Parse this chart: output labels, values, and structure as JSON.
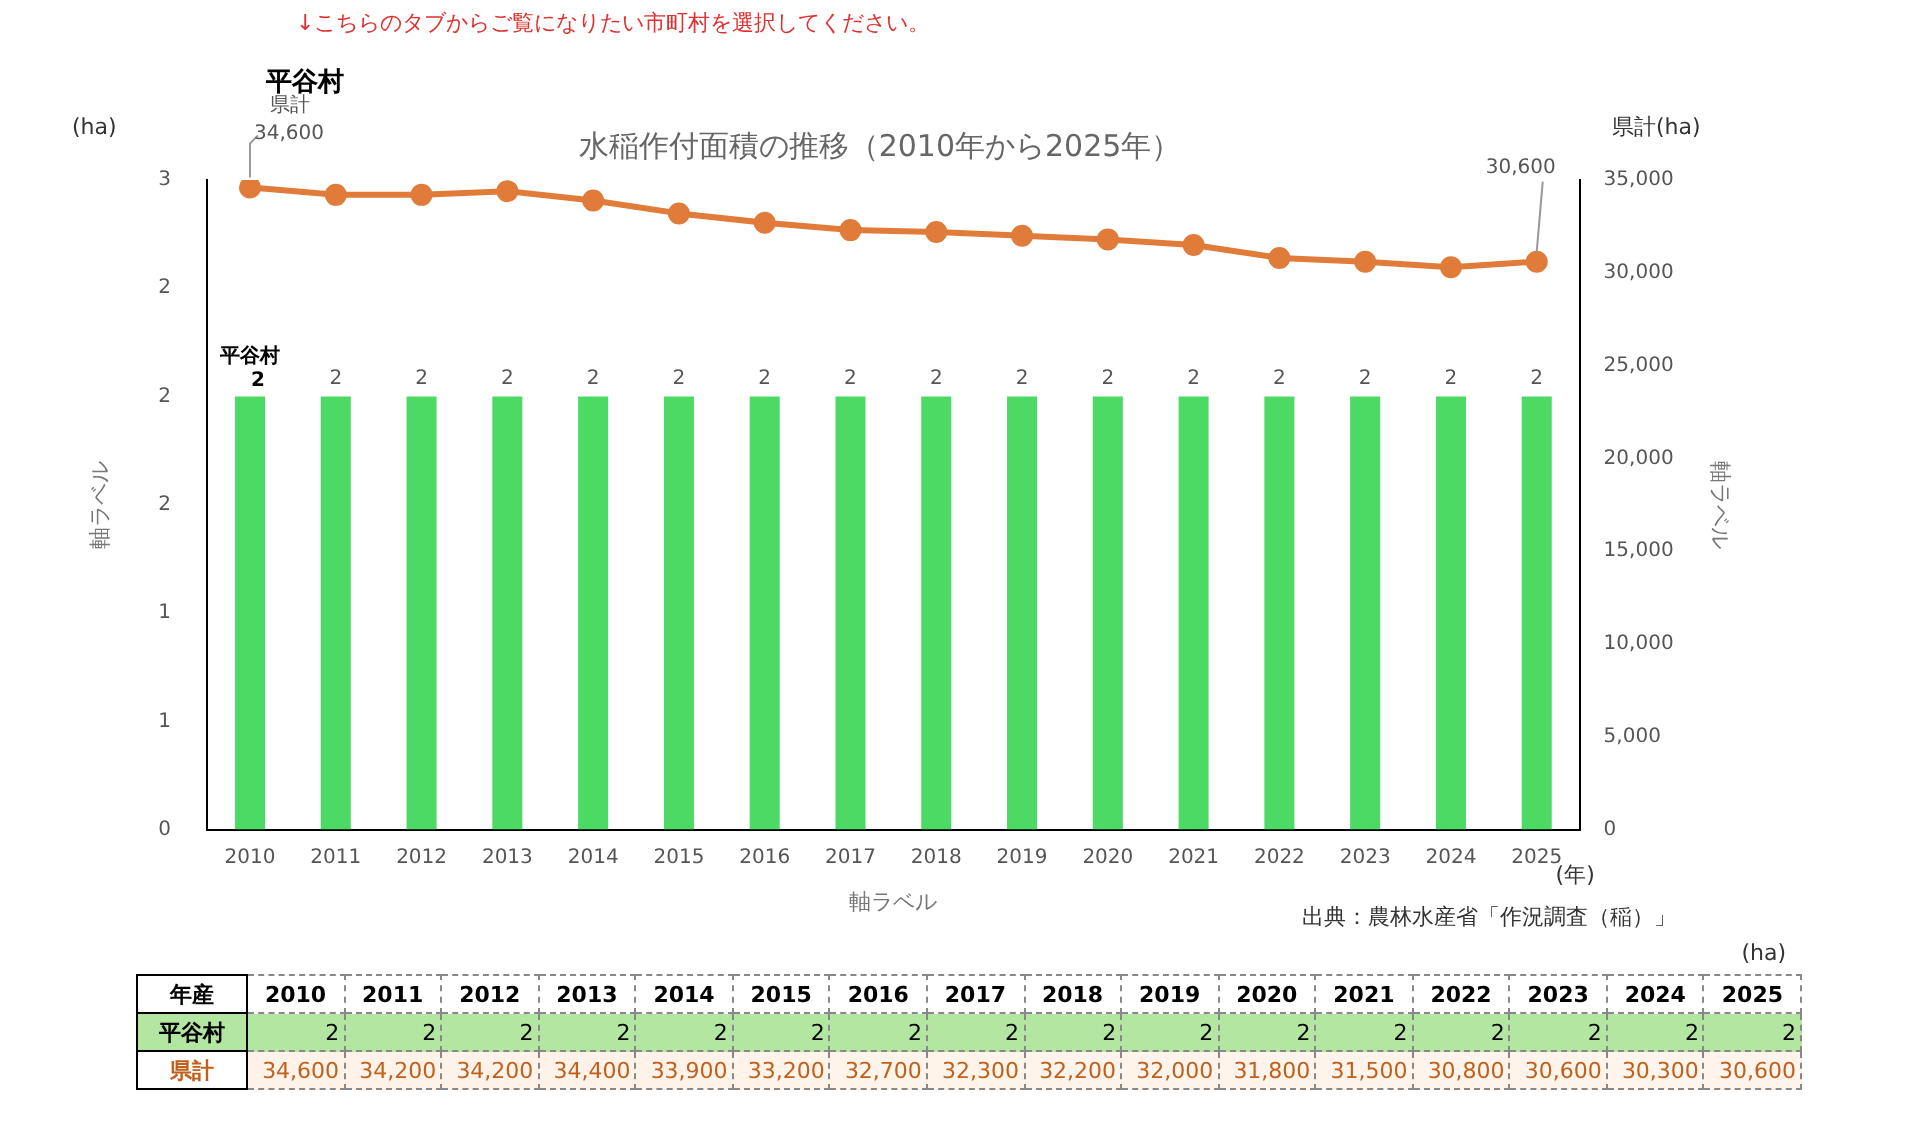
{
  "chart_data": [
    {
      "type": "bar",
      "title": "水稲作付面積の推移（2010年から2025年）",
      "subtitle": "平谷村",
      "xlabel": "軸ラベル",
      "ylabel": "軸ラベル",
      "y2label": "軸ラベル",
      "annotations": [
        "↓こちらのタブからご覧になりたい市町村を選択してください。",
        "(ha)",
        "県計(ha)",
        "(年)",
        "出典：農林水産省「作況調査（稲）」"
      ],
      "categories": [
        "2010",
        "2011",
        "2012",
        "2013",
        "2014",
        "2015",
        "2016",
        "2017",
        "2018",
        "2019",
        "2020",
        "2021",
        "2022",
        "2023",
        "2024",
        "2025"
      ],
      "series": [
        {
          "name": "平谷村",
          "color": "#4cd964",
          "values": [
            2,
            2,
            2,
            2,
            2,
            2,
            2,
            2,
            2,
            2,
            2,
            2,
            2,
            2,
            2,
            2
          ],
          "value_labels": [
            "2",
            "2",
            "2",
            "2",
            "2",
            "2",
            "2",
            "2",
            "2",
            "2",
            "2",
            "2",
            "2",
            "2",
            "2",
            "2"
          ]
        },
        {
          "name": "県計",
          "type": "line",
          "axis": "y2",
          "color": "#e07b39",
          "marker": "circle",
          "values": [
            34600,
            34200,
            34200,
            34400,
            33900,
            33200,
            32700,
            32300,
            32200,
            32000,
            31800,
            31500,
            30800,
            30600,
            30300,
            30600
          ],
          "value_labels": [
            "34,600",
            null,
            null,
            null,
            null,
            null,
            null,
            null,
            null,
            null,
            null,
            null,
            null,
            null,
            null,
            "30,600"
          ]
        }
      ],
      "ylim": [
        0,
        3
      ],
      "yticks": [
        0,
        {
          "value": 0.5,
          "label": "1"
        },
        1,
        {
          "value": 1.5,
          "label": "2"
        },
        2,
        {
          "value": 2.5,
          "label": "2"
        },
        3
      ],
      "y2lim": [
        0,
        35000
      ],
      "y2ticks": [
        0,
        {
          "value": 5000,
          "label": "5,000"
        },
        {
          "value": 10000,
          "label": "10,000"
        },
        {
          "value": 15000,
          "label": "15,000"
        },
        {
          "value": 20000,
          "label": "20,000"
        },
        {
          "value": 25000,
          "label": "25,000"
        },
        {
          "value": 30000,
          "label": "30,000"
        },
        {
          "value": 35000,
          "label": "35,000"
        }
      ],
      "grid": false,
      "legend": false
    },
    {
      "type": "heatmap",
      "annotations": [
        "(ha)",
        "年産"
      ],
      "categories": [
        "2010",
        "2011",
        "2012",
        "2013",
        "2014",
        "2015",
        "2016",
        "2017",
        "2018",
        "2019",
        "2020",
        "2021",
        "2022",
        "2023",
        "2024",
        "2025"
      ],
      "y_categories": [
        "平谷村",
        "県計"
      ],
      "cells": [
        [
          2,
          2,
          2,
          2,
          2,
          2,
          2,
          2,
          2,
          2,
          2,
          2,
          2,
          2,
          2,
          2
        ],
        [
          34600,
          34200,
          34200,
          34400,
          33900,
          33200,
          32700,
          32300,
          32200,
          32000,
          31800,
          31500,
          30800,
          30600,
          30300,
          30600
        ]
      ],
      "cell_labels": [
        [
          "2",
          "2",
          "2",
          "2",
          "2",
          "2",
          "2",
          "2",
          "2",
          "2",
          "2",
          "2",
          "2",
          "2",
          "2",
          "2"
        ],
        [
          "34,600",
          "34,200",
          "34,200",
          "34,400",
          "33,900",
          "33,200",
          "32,700",
          "32,300",
          "32,200",
          "32,000",
          "31,800",
          "31,500",
          "30,800",
          "30,600",
          "30,300",
          "30,600"
        ]
      ]
    }
  ]
}
